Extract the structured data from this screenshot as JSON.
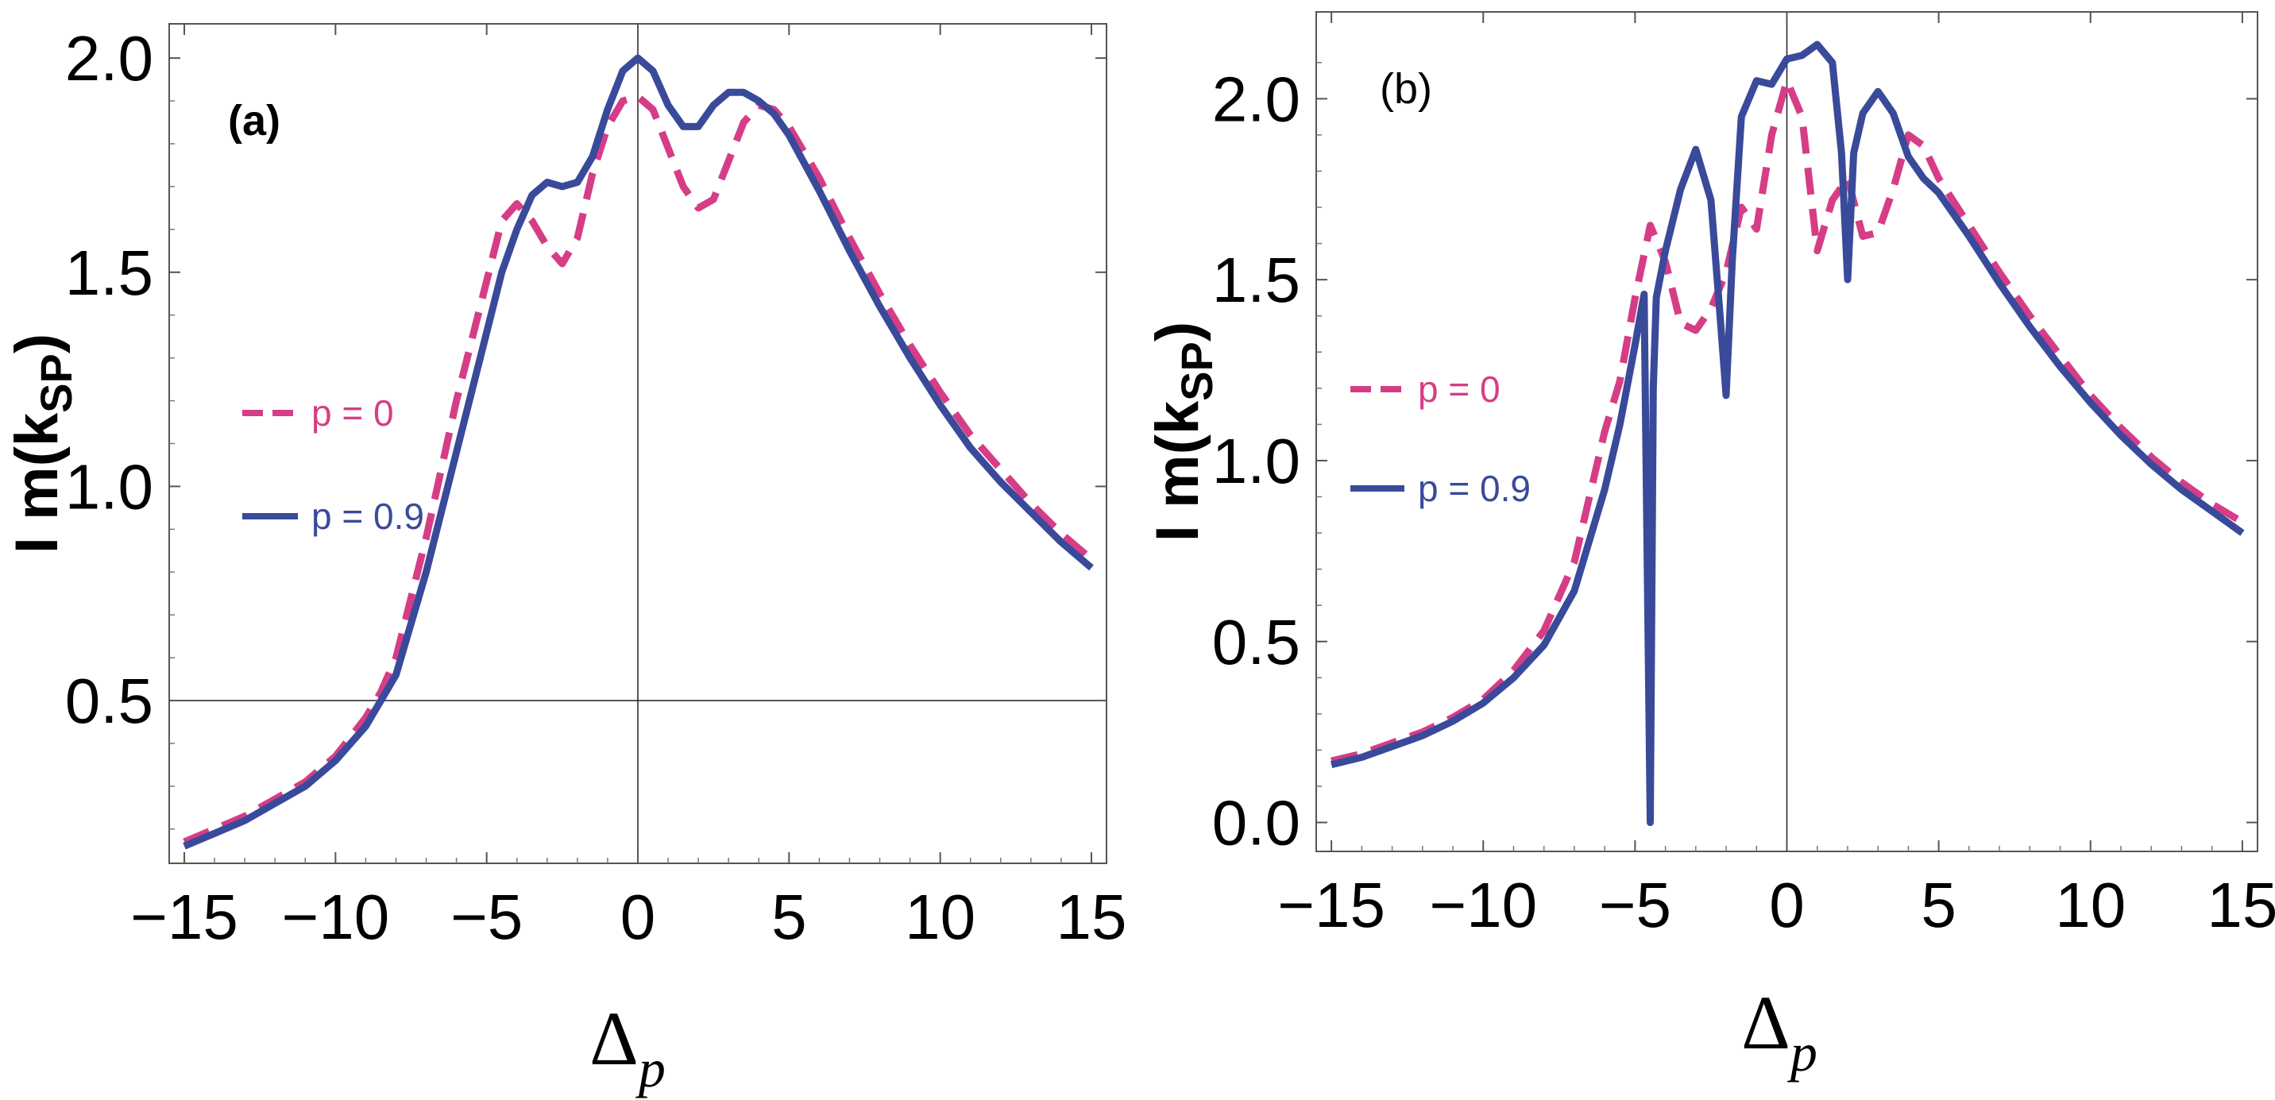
{
  "chart_data": [
    {
      "type": "line",
      "panel_label": "(a)",
      "xlabel": "Δ",
      "xlabel_sub": "p",
      "ylabel": "I m(k",
      "ylabel_sub": "SP",
      "ylabel_close": ")",
      "xlim": [
        -15.5,
        15.5
      ],
      "ylim": [
        0.12,
        2.08
      ],
      "xticks": [
        -15,
        -10,
        -5,
        0,
        5,
        10,
        15
      ],
      "xtick_labels": [
        "−15",
        "−10",
        "−5",
        "0",
        "5",
        "10",
        "15"
      ],
      "yticks": [
        0.5,
        1.0,
        1.5,
        2.0
      ],
      "ytick_labels": [
        "0.5",
        "1.0",
        "1.5",
        "2.0"
      ],
      "axis_lines": {
        "x0": 0,
        "y0": 0.5
      },
      "legend_position": "center-left",
      "series": [
        {
          "name": "p = 0",
          "label": "p = 0",
          "color": "#d63d87",
          "style": "dashed",
          "x": [
            -15,
            -14,
            -13,
            -12,
            -11,
            -10,
            -9,
            -8.5,
            -8,
            -7,
            -6,
            -5,
            -4.5,
            -4,
            -3.5,
            -3,
            -2.5,
            -2,
            -1.5,
            -1,
            -0.5,
            0,
            0.5,
            1,
            1.5,
            2,
            2.5,
            3,
            3.5,
            4,
            4.5,
            5,
            6,
            7,
            8,
            9,
            10,
            11,
            12,
            13,
            14,
            15
          ],
          "y": [
            0.17,
            0.2,
            0.23,
            0.27,
            0.31,
            0.37,
            0.46,
            0.52,
            0.6,
            0.88,
            1.2,
            1.48,
            1.62,
            1.66,
            1.62,
            1.56,
            1.52,
            1.58,
            1.73,
            1.84,
            1.9,
            1.91,
            1.88,
            1.79,
            1.7,
            1.65,
            1.67,
            1.76,
            1.85,
            1.89,
            1.88,
            1.84,
            1.72,
            1.58,
            1.45,
            1.33,
            1.22,
            1.12,
            1.04,
            0.96,
            0.89,
            0.83
          ]
        },
        {
          "name": "p = 0.9",
          "label": "p = 0.9",
          "color": "#3a4a9a",
          "style": "solid",
          "x": [
            -15,
            -14,
            -13,
            -12,
            -11,
            -10,
            -9,
            -8.5,
            -8,
            -7,
            -6,
            -5,
            -4.5,
            -4,
            -3.5,
            -3,
            -2.5,
            -2,
            -1.5,
            -1,
            -0.5,
            0,
            0.5,
            1,
            1.5,
            2,
            2.5,
            3,
            3.5,
            4,
            4.5,
            5,
            6,
            7,
            8,
            9,
            10,
            11,
            12,
            13,
            14,
            15
          ],
          "y": [
            0.16,
            0.19,
            0.22,
            0.26,
            0.3,
            0.36,
            0.44,
            0.5,
            0.56,
            0.8,
            1.08,
            1.36,
            1.5,
            1.6,
            1.68,
            1.71,
            1.7,
            1.71,
            1.77,
            1.88,
            1.97,
            2.0,
            1.97,
            1.89,
            1.84,
            1.84,
            1.89,
            1.92,
            1.92,
            1.9,
            1.87,
            1.82,
            1.69,
            1.55,
            1.42,
            1.3,
            1.19,
            1.09,
            1.01,
            0.94,
            0.87,
            0.81
          ]
        }
      ]
    },
    {
      "type": "line",
      "panel_label": "(b)",
      "xlabel": "Δ",
      "xlabel_sub": "p",
      "ylabel": "I m(k",
      "ylabel_sub": "SP",
      "ylabel_close": ")",
      "xlim": [
        -15.5,
        15.5
      ],
      "ylim": [
        -0.08,
        2.24
      ],
      "xticks": [
        -15,
        -10,
        -5,
        0,
        5,
        10,
        15
      ],
      "xtick_labels": [
        "−15",
        "−10",
        "−5",
        "0",
        "5",
        "10",
        "15"
      ],
      "yticks": [
        0.0,
        0.5,
        1.0,
        1.5,
        2.0
      ],
      "ytick_labels": [
        "0.0",
        "0.5",
        "1.0",
        "1.5",
        "2.0"
      ],
      "axis_lines": {
        "x0": 0
      },
      "legend_position": "center-left",
      "series": [
        {
          "name": "p = 0",
          "label": "p = 0",
          "color": "#d63d87",
          "style": "dashed",
          "x": [
            -15,
            -14,
            -13,
            -12,
            -11,
            -10,
            -9,
            -8,
            -7,
            -6,
            -5.5,
            -5,
            -4.5,
            -4,
            -3.5,
            -3,
            -2.5,
            -2,
            -1.5,
            -1,
            -0.5,
            0,
            0.5,
            1,
            1.5,
            2,
            2.5,
            3,
            3.5,
            4,
            4.5,
            5,
            6,
            7,
            8,
            9,
            10,
            11,
            12,
            13,
            14,
            15
          ],
          "y": [
            0.17,
            0.19,
            0.22,
            0.25,
            0.29,
            0.34,
            0.42,
            0.53,
            0.72,
            1.08,
            1.22,
            1.45,
            1.65,
            1.55,
            1.38,
            1.36,
            1.42,
            1.52,
            1.7,
            1.64,
            1.9,
            2.05,
            1.95,
            1.58,
            1.72,
            1.78,
            1.62,
            1.63,
            1.75,
            1.9,
            1.87,
            1.78,
            1.65,
            1.52,
            1.4,
            1.29,
            1.18,
            1.09,
            1.01,
            0.94,
            0.88,
            0.83
          ]
        },
        {
          "name": "p = 0.9",
          "label": "p = 0.9",
          "color": "#3a4a9a",
          "style": "solid",
          "x": [
            -15,
            -14,
            -13,
            -12,
            -11,
            -10,
            -9,
            -8,
            -7,
            -6,
            -5.5,
            -5,
            -4.7,
            -4.5,
            -4.4,
            -4.3,
            -4,
            -3.5,
            -3,
            -2.5,
            -2.2,
            -2.0,
            -1.8,
            -1.5,
            -1,
            -0.5,
            0,
            0.5,
            1,
            1.5,
            1.8,
            2.0,
            2.2,
            2.5,
            3,
            3.5,
            4,
            4.5,
            5,
            6,
            7,
            8,
            9,
            10,
            11,
            12,
            13,
            14,
            15
          ],
          "y": [
            0.16,
            0.18,
            0.21,
            0.24,
            0.28,
            0.33,
            0.4,
            0.49,
            0.64,
            0.92,
            1.1,
            1.32,
            1.46,
            0.0,
            1.2,
            1.45,
            1.58,
            1.75,
            1.86,
            1.72,
            1.4,
            1.18,
            1.55,
            1.95,
            2.05,
            2.04,
            2.11,
            2.12,
            2.15,
            2.1,
            1.85,
            1.5,
            1.85,
            1.96,
            2.02,
            1.96,
            1.84,
            1.78,
            1.74,
            1.62,
            1.49,
            1.37,
            1.26,
            1.16,
            1.07,
            0.99,
            0.92,
            0.86,
            0.8
          ]
        }
      ]
    }
  ]
}
